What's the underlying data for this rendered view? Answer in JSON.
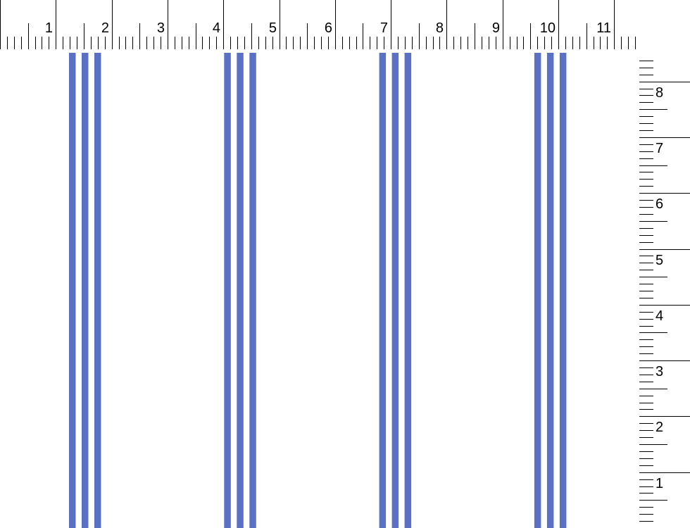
{
  "top_ruler": {
    "labels": [
      "1",
      "2",
      "3",
      "4",
      "5",
      "6",
      "7",
      "8",
      "9",
      "10",
      "11"
    ],
    "ticks_per_unit": 8
  },
  "side_ruler": {
    "labels": [
      "1",
      "2",
      "3",
      "4",
      "5",
      "6",
      "7",
      "8"
    ],
    "ticks_per_unit": 8
  },
  "pattern": {
    "stripe_color": "#5a70c4",
    "stripes_per_group": 3,
    "groups": 4
  }
}
